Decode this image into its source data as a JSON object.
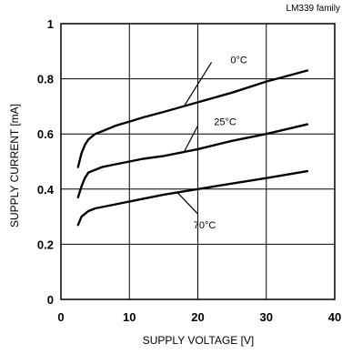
{
  "chart_data": {
    "type": "line",
    "title": "LM339 family",
    "xlabel": "SUPPLY VOLTAGE [V]",
    "ylabel": "SUPPLY CURRENT [mA]",
    "xlim": [
      0,
      40
    ],
    "ylim": [
      0,
      1
    ],
    "xticks": [
      "0",
      "10",
      "20",
      "30",
      "40"
    ],
    "yticks": [
      "0",
      "0.2",
      "0.4",
      "0.6",
      "0.8",
      "1"
    ],
    "grid": true,
    "series": [
      {
        "name": "0°C",
        "x": [
          2.5,
          3,
          3.5,
          4,
          5,
          6,
          8,
          10,
          12,
          15,
          20,
          25,
          30,
          36
        ],
        "y": [
          0.48,
          0.53,
          0.56,
          0.58,
          0.6,
          0.61,
          0.63,
          0.645,
          0.66,
          0.68,
          0.715,
          0.75,
          0.79,
          0.83
        ]
      },
      {
        "name": "25°C",
        "x": [
          2.5,
          3,
          3.5,
          4,
          5,
          6,
          8,
          10,
          12,
          15,
          20,
          25,
          30,
          36
        ],
        "y": [
          0.37,
          0.41,
          0.44,
          0.46,
          0.47,
          0.48,
          0.49,
          0.5,
          0.51,
          0.52,
          0.545,
          0.575,
          0.6,
          0.635
        ]
      },
      {
        "name": "70°C",
        "x": [
          2.5,
          3,
          3.5,
          4,
          5,
          6,
          8,
          10,
          12,
          15,
          20,
          25,
          30,
          36
        ],
        "y": [
          0.27,
          0.3,
          0.31,
          0.32,
          0.33,
          0.335,
          0.345,
          0.355,
          0.365,
          0.38,
          0.4,
          0.42,
          0.44,
          0.465
        ]
      }
    ],
    "annotations": [
      {
        "text": "0°C",
        "series": "0°C"
      },
      {
        "text": "25°C",
        "series": "25°C"
      },
      {
        "text": "70°C",
        "series": "70°C"
      }
    ]
  }
}
